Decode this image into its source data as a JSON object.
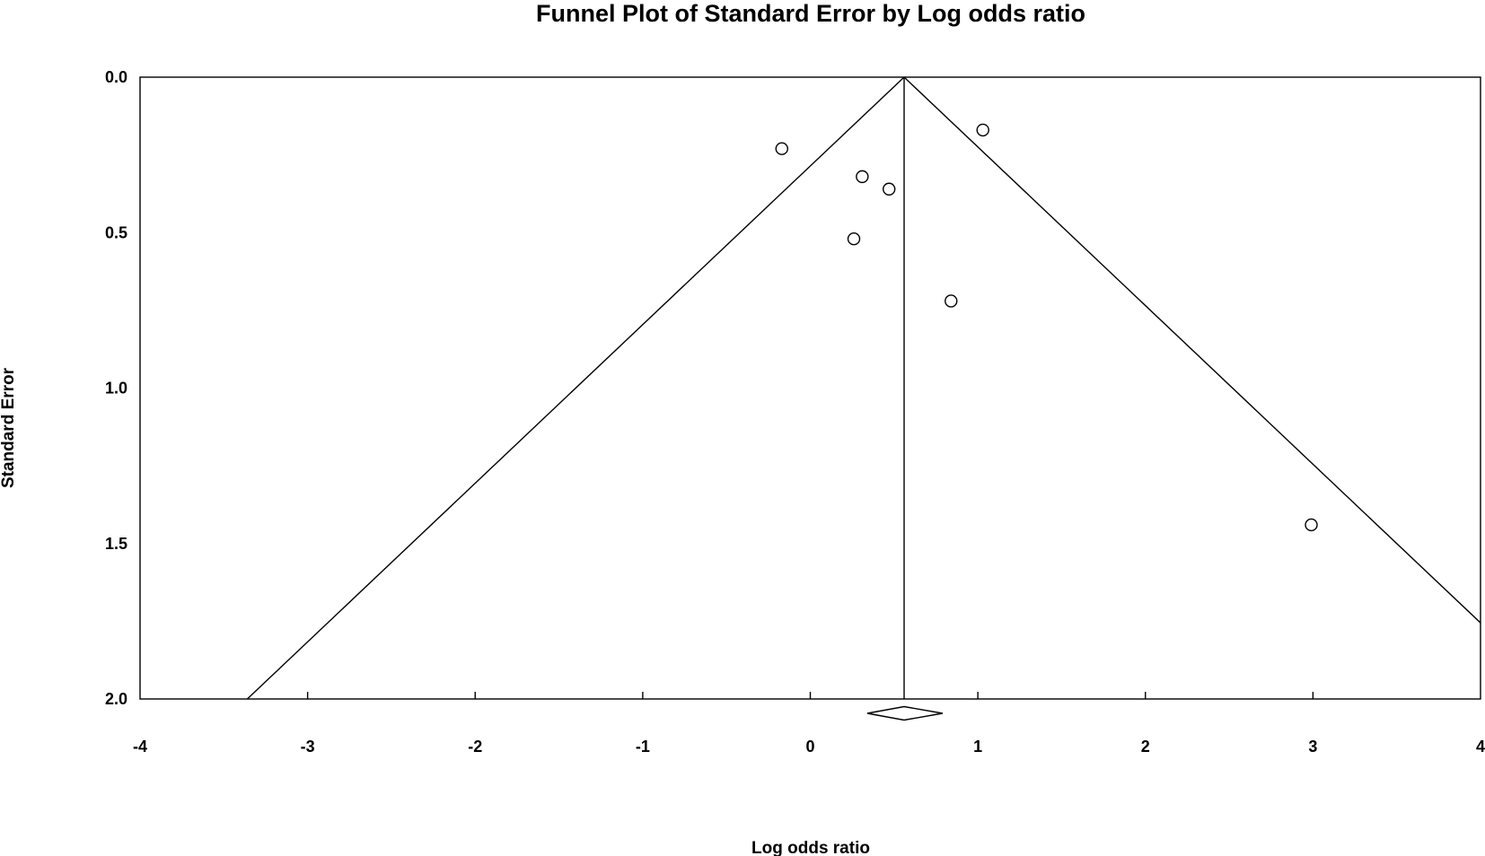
{
  "chart_data": {
    "type": "scatter",
    "subtype": "funnel-plot",
    "title": "Funnel Plot of Standard Error by Log odds ratio",
    "xlabel": "Log odds ratio",
    "ylabel": "Standard Error",
    "xlim": [
      -4,
      4
    ],
    "ylim": [
      2.0,
      0.0
    ],
    "y_inverted": true,
    "x_ticks": [
      -4,
      -3,
      -2,
      -1,
      0,
      1,
      2,
      3,
      4
    ],
    "x_tick_labels": [
      "-4",
      "-3",
      "-2",
      "-1",
      "0",
      "1",
      "2",
      "3",
      "4"
    ],
    "y_ticks": [
      0.0,
      0.5,
      1.0,
      1.5,
      2.0
    ],
    "y_tick_labels": [
      "0.0",
      "0.5",
      "1.0",
      "1.5",
      "2.0"
    ],
    "grid": false,
    "legend": "none",
    "points": [
      {
        "x": -0.17,
        "y": 0.23
      },
      {
        "x": 1.03,
        "y": 0.17
      },
      {
        "x": 0.31,
        "y": 0.32
      },
      {
        "x": 0.47,
        "y": 0.36
      },
      {
        "x": 0.26,
        "y": 0.52
      },
      {
        "x": 0.84,
        "y": 0.72
      },
      {
        "x": 2.99,
        "y": 1.44
      }
    ],
    "pooled_estimate": 0.56,
    "funnel_limit_slope": 1.96,
    "summary_diamond": {
      "center": 0.56,
      "lower": 0.34,
      "upper": 0.79
    },
    "colors": {
      "line": "#000000",
      "marker_fill": "#ffffff",
      "background": "#ffffff"
    }
  }
}
